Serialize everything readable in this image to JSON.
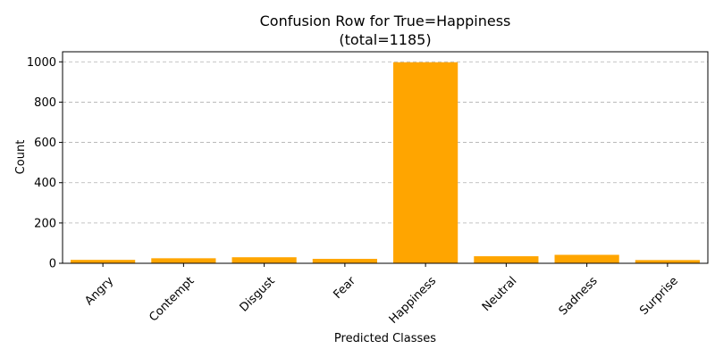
{
  "chart_data": {
    "type": "bar",
    "title": "Confusion Row for True=Happiness",
    "subtitle": "(total=1185)",
    "xlabel": "Predicted Classes",
    "ylabel": "Count",
    "categories": [
      "Angry",
      "Contempt",
      "Disgust",
      "Fear",
      "Happiness",
      "Neutral",
      "Sadness",
      "Surprise"
    ],
    "values": [
      17,
      25,
      30,
      22,
      998,
      35,
      42,
      16
    ],
    "ylim": [
      0,
      1050
    ],
    "yticks": [
      0,
      200,
      400,
      600,
      800,
      1000
    ],
    "grid": "y-dashed",
    "bar_color": "#FFA500"
  }
}
